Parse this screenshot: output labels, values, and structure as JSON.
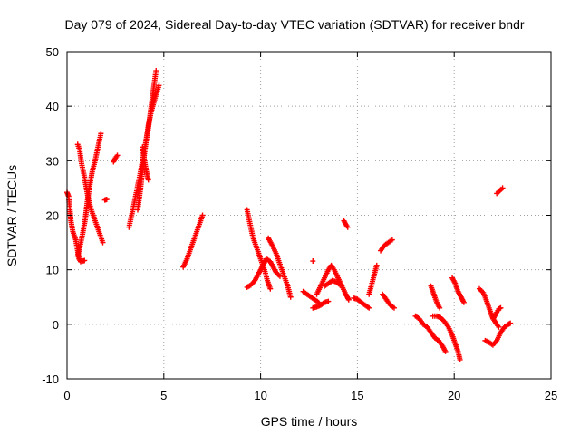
{
  "chart_data": {
    "type": "scatter",
    "title": "Day 079 of 2024, Sidereal Day-to-day VTEC variation (SDTVAR) for receiver bndr",
    "xlabel": "GPS time / hours",
    "ylabel": "SDTVAR / TECUs",
    "xlim": [
      0,
      25
    ],
    "ylim": [
      -10,
      50
    ],
    "xticks": [
      "0",
      "5",
      "10",
      "15",
      "20",
      "25"
    ],
    "yticks": [
      "-10",
      "0",
      "10",
      "20",
      "30",
      "40",
      "50"
    ],
    "grid": true,
    "marker": "plus",
    "color": "#ff0000",
    "segments": [
      [
        [
          0.0,
          24.2
        ],
        [
          0.08,
          23.5
        ],
        [
          0.15,
          21.0
        ],
        [
          0.2,
          19.0
        ],
        [
          0.3,
          17.0
        ],
        [
          0.45,
          15.5
        ],
        [
          0.55,
          13.5
        ],
        [
          0.62,
          12.0
        ],
        [
          0.7,
          11.5
        ],
        [
          0.9,
          11.7
        ]
      ],
      [
        [
          0.55,
          33.0
        ],
        [
          0.65,
          32.0
        ],
        [
          0.75,
          29.5
        ],
        [
          0.9,
          27.0
        ],
        [
          1.0,
          25.0
        ],
        [
          1.1,
          23.0
        ],
        [
          1.25,
          21.0
        ],
        [
          1.45,
          19.0
        ],
        [
          1.65,
          17.0
        ],
        [
          1.85,
          15.0
        ]
      ],
      [
        [
          0.55,
          12.5
        ],
        [
          0.65,
          14.0
        ],
        [
          0.8,
          16.5
        ],
        [
          0.95,
          19.5
        ],
        [
          1.05,
          22.5
        ],
        [
          1.15,
          25.0
        ],
        [
          1.3,
          28.0
        ],
        [
          1.45,
          30.0
        ],
        [
          1.6,
          32.5
        ],
        [
          1.75,
          35.0
        ]
      ],
      [
        [
          1.95,
          22.8
        ],
        [
          2.05,
          22.9
        ]
      ],
      [
        [
          2.4,
          29.8
        ],
        [
          2.5,
          30.5
        ],
        [
          2.6,
          31.0
        ]
      ],
      [
        [
          3.2,
          17.8
        ],
        [
          3.4,
          21.0
        ],
        [
          3.6,
          24.5
        ],
        [
          3.8,
          28.0
        ],
        [
          4.0,
          32.0
        ],
        [
          4.2,
          36.0
        ],
        [
          4.35,
          40.0
        ],
        [
          4.5,
          44.0
        ],
        [
          4.6,
          46.5
        ]
      ],
      [
        [
          3.65,
          21.0
        ],
        [
          3.8,
          25.0
        ],
        [
          3.95,
          30.0
        ],
        [
          4.1,
          34.0
        ],
        [
          4.2,
          36.5
        ],
        [
          4.35,
          39.0
        ],
        [
          4.55,
          41.5
        ],
        [
          4.75,
          43.8
        ]
      ],
      [
        [
          3.9,
          32.5
        ],
        [
          4.0,
          30.0
        ],
        [
          4.1,
          28.0
        ],
        [
          4.2,
          26.5
        ]
      ],
      [
        [
          6.0,
          10.5
        ],
        [
          6.2,
          12.0
        ],
        [
          6.4,
          14.0
        ],
        [
          6.6,
          16.0
        ],
        [
          6.8,
          18.0
        ],
        [
          7.0,
          20.0
        ]
      ],
      [
        [
          9.3,
          21.0
        ],
        [
          9.45,
          18.5
        ],
        [
          9.6,
          16.0
        ],
        [
          9.8,
          14.0
        ],
        [
          10.0,
          12.0
        ],
        [
          10.2,
          10.0
        ],
        [
          10.35,
          8.0
        ],
        [
          10.5,
          6.5
        ]
      ],
      [
        [
          9.3,
          6.8
        ],
        [
          9.5,
          7.2
        ],
        [
          9.7,
          8.0
        ],
        [
          9.85,
          9.0
        ],
        [
          10.0,
          10.0
        ],
        [
          10.15,
          11.0
        ],
        [
          10.3,
          12.0
        ],
        [
          10.5,
          11.5
        ],
        [
          10.65,
          10.5
        ],
        [
          10.8,
          9.5
        ],
        [
          11.0,
          8.8
        ]
      ],
      [
        [
          10.4,
          15.8
        ],
        [
          10.6,
          14.5
        ],
        [
          10.8,
          13.0
        ],
        [
          11.0,
          11.0
        ],
        [
          11.2,
          9.0
        ],
        [
          11.4,
          7.0
        ],
        [
          11.55,
          5.0
        ]
      ],
      [
        [
          12.2,
          6.0
        ],
        [
          12.4,
          5.5
        ],
        [
          12.6,
          5.0
        ],
        [
          12.8,
          4.5
        ],
        [
          13.0,
          4.0
        ]
      ],
      [
        [
          12.7,
          3.0
        ],
        [
          12.9,
          3.2
        ],
        [
          13.1,
          3.5
        ],
        [
          13.3,
          4.0
        ],
        [
          13.5,
          4.2
        ]
      ],
      [
        [
          12.7,
          11.6
        ]
      ],
      [
        [
          12.9,
          5.5
        ],
        [
          13.1,
          7.0
        ],
        [
          13.3,
          8.5
        ],
        [
          13.5,
          10.0
        ],
        [
          13.65,
          10.8
        ],
        [
          13.8,
          10.0
        ],
        [
          14.0,
          8.5
        ],
        [
          14.2,
          7.0
        ],
        [
          14.4,
          5.5
        ],
        [
          14.55,
          4.5
        ]
      ],
      [
        [
          13.3,
          7.0
        ],
        [
          13.5,
          7.5
        ],
        [
          13.7,
          8.0
        ],
        [
          13.9,
          7.8
        ],
        [
          14.1,
          7.2
        ]
      ],
      [
        [
          14.3,
          19.0
        ],
        [
          14.4,
          18.3
        ],
        [
          14.5,
          17.8
        ]
      ],
      [
        [
          14.8,
          4.8
        ],
        [
          15.0,
          4.6
        ],
        [
          15.2,
          4.0
        ],
        [
          15.4,
          3.5
        ],
        [
          15.6,
          3.0
        ]
      ],
      [
        [
          15.6,
          5.5
        ],
        [
          15.75,
          7.5
        ],
        [
          15.9,
          9.5
        ],
        [
          16.0,
          10.8
        ]
      ],
      [
        [
          16.2,
          13.5
        ],
        [
          16.4,
          14.5
        ],
        [
          16.6,
          15.0
        ],
        [
          16.8,
          15.5
        ]
      ],
      [
        [
          16.3,
          5.5
        ],
        [
          16.5,
          4.5
        ],
        [
          16.7,
          3.5
        ],
        [
          16.9,
          3.0
        ]
      ],
      [
        [
          18.0,
          1.5
        ],
        [
          18.2,
          1.0
        ],
        [
          18.4,
          0.0
        ],
        [
          18.6,
          -0.5
        ],
        [
          18.8,
          -1.5
        ],
        [
          19.0,
          -2.5
        ],
        [
          19.2,
          -3.0
        ],
        [
          19.4,
          -4.0
        ],
        [
          19.55,
          -5.0
        ]
      ],
      [
        [
          18.8,
          7.0
        ],
        [
          18.95,
          5.5
        ],
        [
          19.1,
          4.0
        ],
        [
          19.25,
          3.0
        ]
      ],
      [
        [
          18.9,
          1.5
        ],
        [
          19.1,
          1.5
        ],
        [
          19.3,
          1.2
        ],
        [
          19.5,
          0.5
        ],
        [
          19.7,
          -0.5
        ],
        [
          19.9,
          -2.0
        ],
        [
          20.05,
          -3.5
        ],
        [
          20.2,
          -5.0
        ],
        [
          20.3,
          -6.5
        ]
      ],
      [
        [
          19.9,
          8.5
        ],
        [
          20.05,
          7.5
        ],
        [
          20.2,
          6.0
        ],
        [
          20.35,
          5.0
        ],
        [
          20.5,
          4.0
        ]
      ],
      [
        [
          21.3,
          6.5
        ],
        [
          21.5,
          5.8
        ],
        [
          21.65,
          4.5
        ],
        [
          21.8,
          3.0
        ],
        [
          21.95,
          1.5
        ],
        [
          22.1,
          0.5
        ],
        [
          22.3,
          -0.5
        ]
      ],
      [
        [
          21.6,
          -3.0
        ],
        [
          21.8,
          -3.3
        ],
        [
          22.0,
          -3.8
        ],
        [
          22.2,
          -3.0
        ],
        [
          22.4,
          -1.5
        ],
        [
          22.6,
          -0.5
        ],
        [
          22.8,
          0.0
        ],
        [
          22.9,
          0.2
        ]
      ],
      [
        [
          22.0,
          1.0
        ],
        [
          22.1,
          1.5
        ],
        [
          22.2,
          2.2
        ],
        [
          22.3,
          2.8
        ],
        [
          22.4,
          3.0
        ]
      ],
      [
        [
          22.2,
          24.0
        ],
        [
          22.35,
          24.5
        ],
        [
          22.5,
          25.0
        ]
      ]
    ]
  }
}
